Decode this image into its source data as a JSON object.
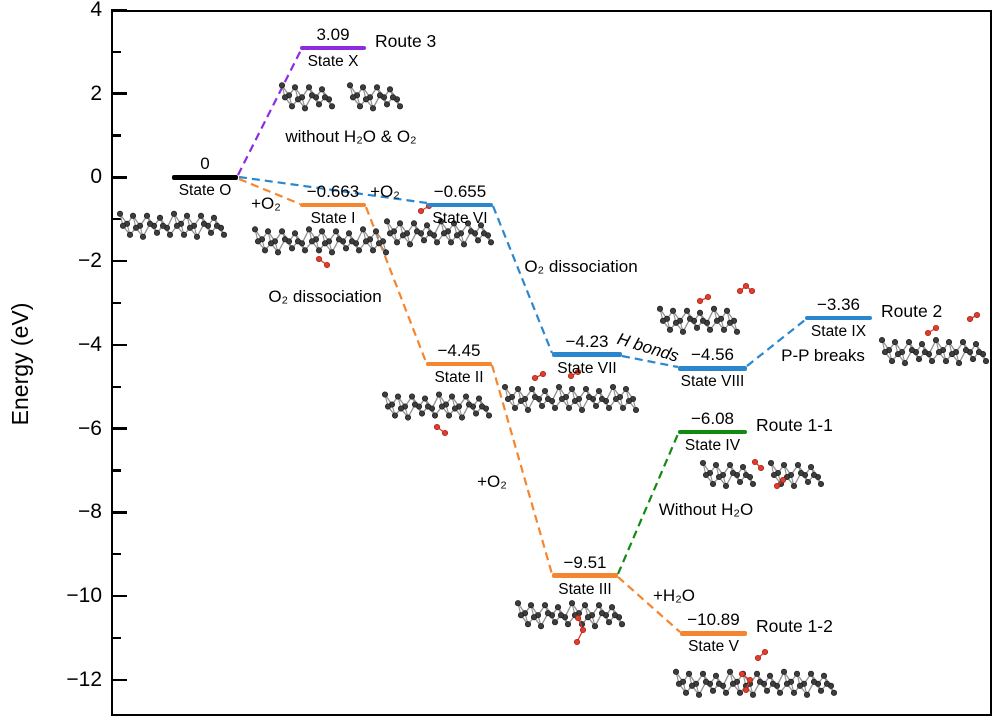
{
  "axis": {
    "label": "Energy (eV)",
    "tick_labels": [
      "4",
      "2",
      "0",
      "−2",
      "−4",
      "−6",
      "−8",
      "−10",
      "−12"
    ]
  },
  "chart_data": {
    "type": "line",
    "subtype": "energy-level-diagram",
    "title": "",
    "xlabel": "",
    "ylabel": "Energy (eV)",
    "ylim": [
      -12.9,
      4
    ],
    "ytick_values": [
      4,
      2,
      0,
      -2,
      -4,
      -6,
      -8,
      -10,
      -12
    ],
    "grid": false,
    "levels": [
      {
        "state": "State O",
        "energy": 0,
        "value_label": "0",
        "color": "#000000"
      },
      {
        "state": "State X",
        "energy": 3.09,
        "value_label": "3.09",
        "color": "#8c2be2",
        "route": "Route 3"
      },
      {
        "state": "State I",
        "energy": -0.663,
        "value_label": "−0.663",
        "color": "#f5852e"
      },
      {
        "state": "State VI",
        "energy": -0.655,
        "value_label": "−0.655",
        "color": "#2b87cd"
      },
      {
        "state": "State II",
        "energy": -4.45,
        "value_label": "−4.45",
        "color": "#f5852e"
      },
      {
        "state": "State VII",
        "energy": -4.23,
        "value_label": "−4.23",
        "color": "#2b87cd"
      },
      {
        "state": "State VIII",
        "energy": -4.56,
        "value_label": "−4.56",
        "color": "#2b87cd"
      },
      {
        "state": "State IX",
        "energy": -3.36,
        "value_label": "−3.36",
        "color": "#2b87cd",
        "route": "Route 2"
      },
      {
        "state": "State III",
        "energy": -9.51,
        "value_label": "−9.51",
        "color": "#f5852e"
      },
      {
        "state": "State IV",
        "energy": -6.08,
        "value_label": "−6.08",
        "color": "#108a10",
        "route": "Route 1-1"
      },
      {
        "state": "State V",
        "energy": -10.89,
        "value_label": "−10.89",
        "color": "#f5852e",
        "route": "Route 1-2"
      }
    ],
    "transitions": [
      {
        "from": "State O",
        "to": "State X",
        "label": "without H₂O & O₂",
        "color": "#8c2be2"
      },
      {
        "from": "State O",
        "to": "State I",
        "label": "+O₂",
        "color": "#f5852e"
      },
      {
        "from": "State O",
        "to": "State VI",
        "label": "+O₂",
        "color": "#2b87cd"
      },
      {
        "from": "State I",
        "to": "State II",
        "label": "O₂ dissociation",
        "color": "#f5852e"
      },
      {
        "from": "State VI",
        "to": "State VII",
        "label": "O₂ dissociation",
        "color": "#2b87cd"
      },
      {
        "from": "State II",
        "to": "State III",
        "label": "+O₂",
        "color": "#f5852e"
      },
      {
        "from": "State VII",
        "to": "State VIII",
        "label": "H bonds",
        "color": "#2b87cd"
      },
      {
        "from": "State VIII",
        "to": "State IX",
        "label": "P-P breaks",
        "color": "#2b87cd"
      },
      {
        "from": "State III",
        "to": "State IV",
        "label": "Without H₂O",
        "color": "#108a10"
      },
      {
        "from": "State III",
        "to": "State V",
        "label": "+H₂O",
        "color": "#f5852e"
      }
    ],
    "legend": null
  },
  "colors": {
    "route_orange": "#f5852e",
    "route_blue": "#2b87cd",
    "route_purple": "#8c2be2",
    "route_green": "#108a10",
    "baseline_black": "#000000",
    "oxygen_red": "#e23c2b",
    "atom_gray": "#3d3d3d",
    "bond_gray": "#909090"
  }
}
